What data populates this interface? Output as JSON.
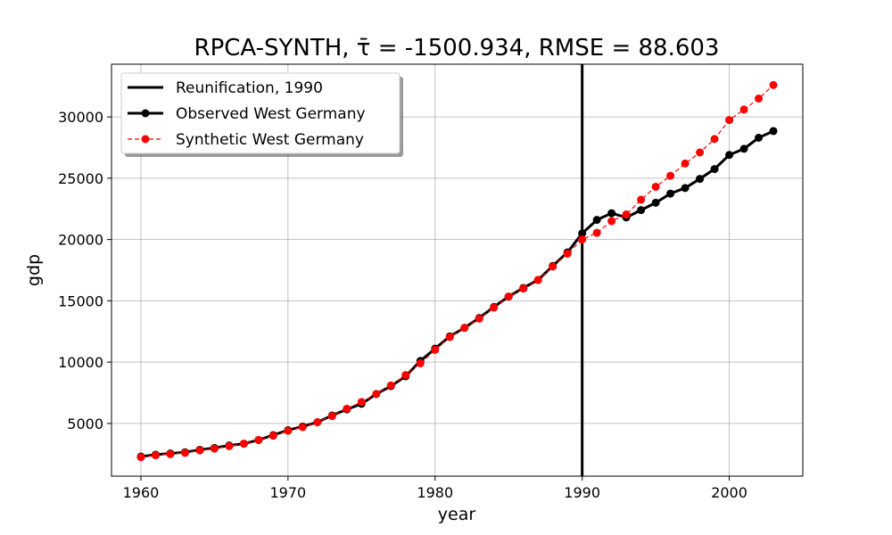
{
  "chart_data": {
    "type": "line",
    "title": "RPCA-SYNTH, τ̄ = -1500.934, RMSE = 88.603",
    "xlabel": "year",
    "ylabel": "gdp",
    "xlim": [
      1958,
      2005
    ],
    "ylim": [
      700,
      34300
    ],
    "xticks": [
      1960,
      1970,
      1980,
      1990,
      2000
    ],
    "yticks": [
      5000,
      10000,
      15000,
      20000,
      25000,
      30000
    ],
    "grid": true,
    "legend_position": "top-left",
    "event": {
      "name": "Reunification, 1990",
      "x": 1990,
      "color": "#000000"
    },
    "x": [
      1960,
      1961,
      1962,
      1963,
      1964,
      1965,
      1966,
      1967,
      1968,
      1969,
      1970,
      1971,
      1972,
      1973,
      1974,
      1975,
      1976,
      1977,
      1978,
      1979,
      1980,
      1981,
      1982,
      1983,
      1984,
      1985,
      1986,
      1987,
      1988,
      1989,
      1990,
      1991,
      1992,
      1993,
      1994,
      1995,
      1996,
      1997,
      1998,
      1999,
      2000,
      2001,
      2002,
      2003
    ],
    "series": [
      {
        "name": "Observed West Germany",
        "color": "#000000",
        "style": "solid",
        "values": [
          2300,
          2450,
          2550,
          2650,
          2850,
          3000,
          3200,
          3350,
          3650,
          4050,
          4450,
          4750,
          5100,
          5650,
          6150,
          6600,
          7400,
          8050,
          8850,
          10100,
          11100,
          12100,
          12800,
          13600,
          14500,
          15350,
          16050,
          16700,
          17850,
          18950,
          20500,
          21600,
          22150,
          21800,
          22400,
          23000,
          23750,
          24200,
          24950,
          25750,
          26900,
          27400,
          28300,
          28850
        ]
      },
      {
        "name": "Synthetic West Germany",
        "color": "#ff0000",
        "style": "dashed",
        "values": [
          2250,
          2400,
          2500,
          2600,
          2800,
          2950,
          3150,
          3350,
          3650,
          4000,
          4400,
          4700,
          5100,
          5600,
          6200,
          6750,
          7400,
          8100,
          8950,
          9900,
          11000,
          12050,
          12800,
          13550,
          14450,
          15350,
          16000,
          16700,
          17800,
          18850,
          20000,
          20550,
          21500,
          22050,
          23250,
          24300,
          25200,
          26200,
          27100,
          28200,
          29750,
          30600,
          31500,
          32600
        ]
      }
    ]
  }
}
